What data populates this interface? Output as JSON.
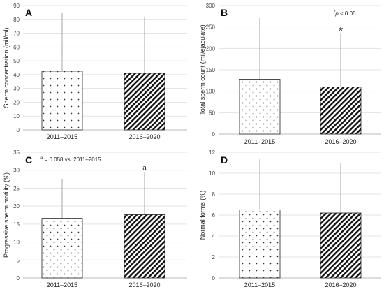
{
  "figure": {
    "chart_data": [
      {
        "panel": "A",
        "type": "bar",
        "categories": [
          "2011–2015",
          "2016–2020"
        ],
        "values": [
          42.5,
          41
        ],
        "error_upper": [
          85,
          82
        ],
        "ylabel": "Sperm concentration (mil/ml)",
        "ylim": [
          0,
          90
        ],
        "yticks": [
          0,
          10,
          20,
          30,
          40,
          50,
          60,
          70,
          80,
          90
        ],
        "grid": true,
        "patterns": [
          "dots",
          "diagonal"
        ]
      },
      {
        "panel": "B",
        "type": "bar",
        "categories": [
          "2011–2015",
          "2016–2020"
        ],
        "values": [
          128,
          110
        ],
        "error_upper": [
          271,
          236
        ],
        "ylabel": "Total sperm count (mil/ejaculate)",
        "ylim": [
          0,
          300
        ],
        "yticks": [
          0,
          50,
          100,
          150,
          200,
          250,
          300
        ],
        "grid": true,
        "patterns": [
          "dots",
          "diagonal"
        ],
        "bar_marks": [
          "",
          "*"
        ],
        "note": {
          "prefix": "*",
          "italic": "p",
          "suffix": " < 0.05"
        }
      },
      {
        "panel": "C",
        "type": "bar",
        "categories": [
          "2011–2015",
          "2016–2020"
        ],
        "values": [
          16.6,
          17.6
        ],
        "error_upper": [
          27.4,
          29.3
        ],
        "ylabel": "Progressive sperm motility (%)",
        "ylim": [
          0,
          35
        ],
        "yticks": [
          0,
          5,
          10,
          15,
          20,
          25,
          30,
          35
        ],
        "grid": true,
        "patterns": [
          "dots",
          "diagonal"
        ],
        "bar_marks": [
          "",
          "a"
        ],
        "note": {
          "prefix": "a",
          "italic": "",
          "suffix": " = 0.058 vs. 2011–2015"
        }
      },
      {
        "panel": "D",
        "type": "bar",
        "categories": [
          "2011–2015",
          "2016–2020"
        ],
        "values": [
          6.5,
          6.2
        ],
        "error_upper": [
          11.4,
          11
        ],
        "ylabel": "Normal forms (%)",
        "ylim": [
          0,
          12
        ],
        "yticks": [
          0,
          2,
          4,
          6,
          8,
          10,
          12
        ],
        "grid": true,
        "patterns": [
          "dots",
          "diagonal"
        ]
      }
    ]
  }
}
